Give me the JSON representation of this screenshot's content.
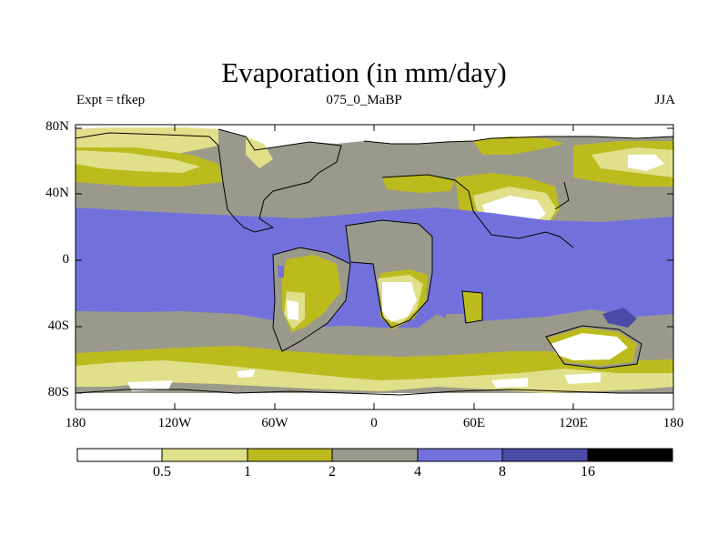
{
  "title": "Evaporation (in mm/day)",
  "subtitle_left": "Expt = tfkep",
  "subtitle_center": "075_0_MaBP",
  "subtitle_right": "JJA",
  "lat_labels": [
    "80N",
    "40N",
    "0",
    "40S",
    "80S"
  ],
  "lon_labels": [
    "180",
    "120W",
    "60W",
    "0",
    "60E",
    "120E",
    "180"
  ],
  "colorbar": {
    "levels": [
      "0.5",
      "1",
      "2",
      "4",
      "8",
      "16"
    ],
    "colors": [
      "#ffffff",
      "#e1e08a",
      "#bcbb1e",
      "#9a9a8c",
      "#7271dc",
      "#4b4ba8",
      "#000000"
    ]
  },
  "colors": {
    "lt0_5": "#ffffff",
    "b0_5_1": "#e1e08a",
    "b1_2": "#bcbb1e",
    "b2_4": "#9a9a8c",
    "b4_8": "#7271dc",
    "b8_16": "#4b4ba8",
    "gt16": "#000000"
  }
}
